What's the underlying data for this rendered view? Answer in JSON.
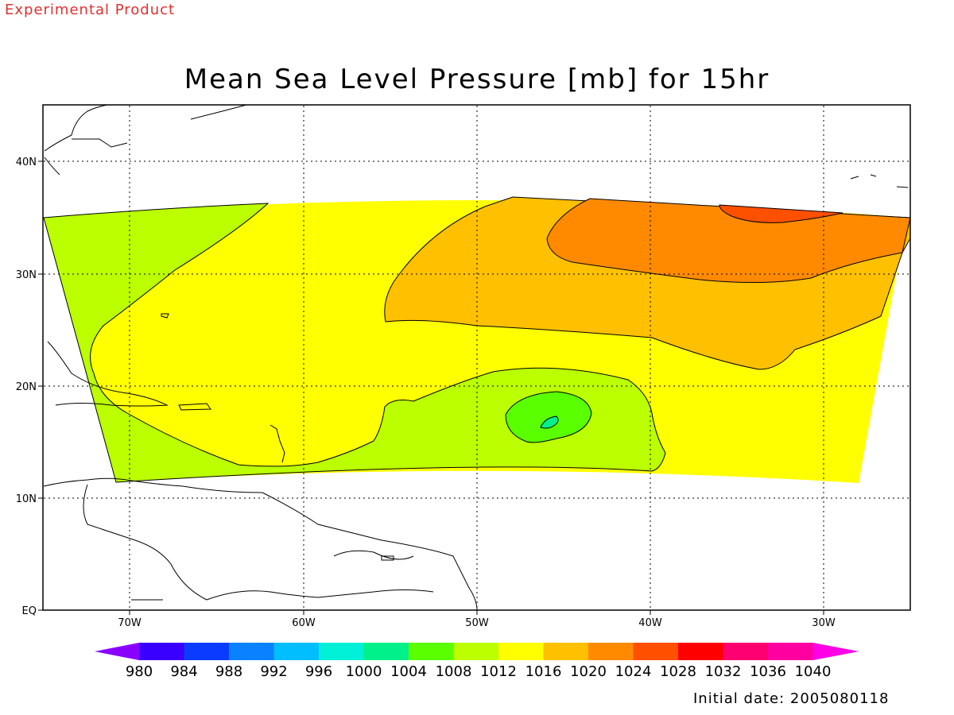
{
  "header": {
    "experimental_label": "Experimental Product",
    "title": "Mean Sea Level Pressure [mb] for 15hr"
  },
  "axes": {
    "lat_labels": [
      "EQ",
      "10N",
      "20N",
      "30N",
      "40N"
    ],
    "lon_labels": [
      "70W",
      "60W",
      "50W",
      "40W",
      "30W"
    ],
    "grid": "dotted"
  },
  "colorbar": {
    "labels": [
      "980",
      "984",
      "988",
      "992",
      "996",
      "1000",
      "1004",
      "1008",
      "1012",
      "1016",
      "1020",
      "1024",
      "1028",
      "1032",
      "1036",
      "1040"
    ],
    "colors": [
      "#8a00ff",
      "#3a00ff",
      "#0a3cff",
      "#0a82ff",
      "#00beff",
      "#00f0d8",
      "#00f08a",
      "#5aff00",
      "#bbff00",
      "#ffff00",
      "#ffc000",
      "#ff8a00",
      "#ff5000",
      "#ff0000",
      "#ff0070",
      "#ff00a0",
      "#ff00e6"
    ]
  },
  "footer": {
    "initial_date": "Initial date: 2005080118"
  }
}
